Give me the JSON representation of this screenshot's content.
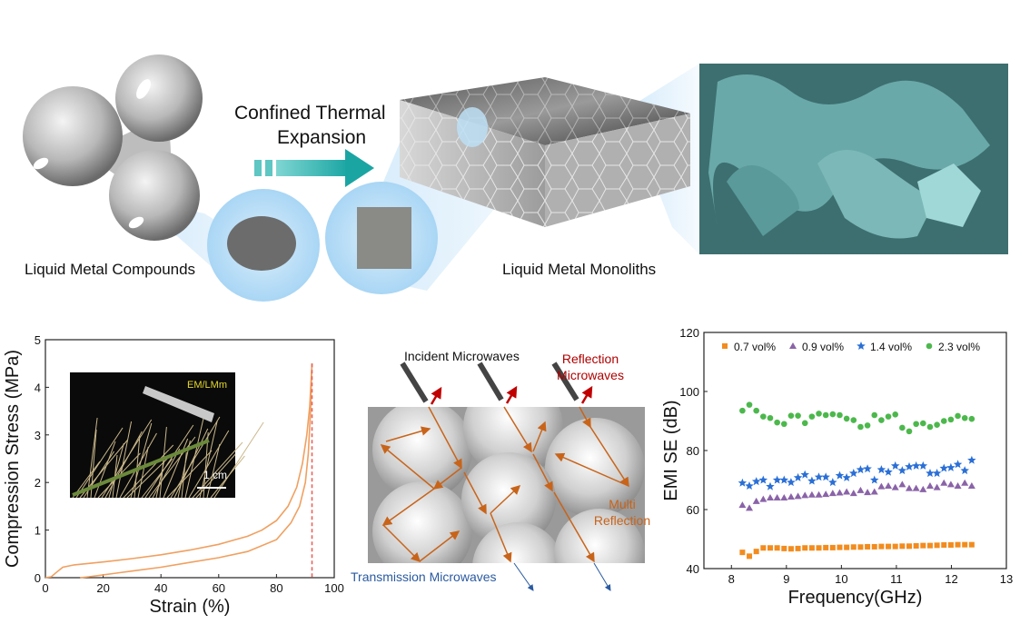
{
  "top": {
    "process_label_line1": "Confined Thermal",
    "process_label_line2": "Expansion",
    "compounds_label": "Liquid Metal Compounds",
    "monoliths_label": "Liquid Metal Monoliths"
  },
  "colors": {
    "teal_arrow": "#2bb3b0",
    "foam_render": "#5f9ea0",
    "curve": "#f0a060",
    "dashed": "#e8625a",
    "orange_ray": "#c8641a",
    "reflection": "#c00000",
    "transmission": "#2a5aa0"
  },
  "diagram": {
    "incident_label": "Incident Microwaves",
    "reflection_label_line1": "Reflection",
    "reflection_label_line2": "Microwaves",
    "multi_label_line1": "Multi",
    "multi_label_line2": "Reflection",
    "transmission_label": "Transmission Microwaves"
  },
  "chart_data": [
    {
      "type": "line",
      "xlabel": "Strain (%)",
      "ylabel": "Compression Stress (MPa)",
      "xlim": [
        0,
        100
      ],
      "ylim": [
        0,
        5
      ],
      "xticks": [
        0,
        20,
        40,
        60,
        80,
        100
      ],
      "yticks": [
        0,
        1,
        2,
        3,
        4,
        5
      ],
      "inset": {
        "label": "EM/LMm",
        "scale_bar": "1 cm"
      },
      "series": [
        {
          "x": [
            0,
            2,
            4,
            6,
            10,
            20,
            30,
            40,
            50,
            60,
            70,
            75,
            80,
            84,
            87,
            89,
            90.5,
            91.5,
            92.3
          ],
          "y": [
            0,
            0.02,
            0.12,
            0.22,
            0.27,
            0.33,
            0.4,
            0.48,
            0.58,
            0.7,
            0.87,
            1.0,
            1.2,
            1.5,
            1.9,
            2.4,
            3.0,
            3.6,
            4.5
          ]
        },
        {
          "x": [
            92.3,
            91.8,
            91,
            90,
            88,
            85,
            80,
            70,
            60,
            50,
            40,
            30,
            20,
            15,
            12
          ],
          "y": [
            4.5,
            3.5,
            2.6,
            2.0,
            1.5,
            1.15,
            0.8,
            0.55,
            0.42,
            0.32,
            0.22,
            0.14,
            0.06,
            0.02,
            0
          ]
        }
      ],
      "vline": {
        "x": 92.3,
        "style": "dashed"
      }
    },
    {
      "type": "scatter",
      "xlabel": "Frequency(GHz)",
      "ylabel": "EMI SE (dB)",
      "xlim": [
        7.5,
        13
      ],
      "ylim": [
        40,
        120
      ],
      "xticks": [
        8,
        9,
        10,
        11,
        12,
        13
      ],
      "yticks": [
        40,
        60,
        80,
        100,
        120
      ],
      "legend_position": "top",
      "x_start": 8.2,
      "x_end": 12.37,
      "series": [
        {
          "name": "0.7 vol%",
          "marker": "square",
          "color": "#f28c1e",
          "values": [
            45.5,
            44.2,
            45.8,
            47,
            47,
            47,
            46.8,
            46.7,
            46.8,
            47,
            47,
            47,
            47.1,
            47.1,
            47.2,
            47.2,
            47.3,
            47.3,
            47.4,
            47.4,
            47.5,
            47.5,
            47.5,
            47.6,
            47.6,
            47.7,
            47.8,
            47.8,
            47.9,
            48,
            48,
            48.1,
            48.1,
            48.1
          ]
        },
        {
          "name": "0.9 vol%",
          "marker": "triangle",
          "color": "#8a63a8",
          "values": [
            61.5,
            60.5,
            62.8,
            63.5,
            64,
            64,
            64,
            64.3,
            64.5,
            64.8,
            65,
            65,
            65.2,
            65.5,
            65.7,
            66,
            65.5,
            66.5,
            65.8,
            66,
            67.8,
            68,
            67.5,
            68.5,
            67.2,
            67.2,
            66.8,
            68,
            67.5,
            69,
            68.5,
            68,
            69,
            68
          ]
        },
        {
          "name": "1.4 vol%",
          "marker": "star",
          "color": "#2a6fd6",
          "values": [
            69,
            68,
            69.5,
            70,
            67.8,
            70,
            70,
            69.2,
            70.8,
            71.8,
            69.7,
            71,
            71,
            69.2,
            71.5,
            70.8,
            72.3,
            73.5,
            73.8,
            70,
            73.5,
            72.7,
            74.8,
            73.2,
            74.5,
            74.8,
            74.8,
            72.3,
            72.3,
            74,
            74.2,
            75.3,
            73.2,
            76.7
          ]
        },
        {
          "name": "2.3 vol%",
          "marker": "circle",
          "color": "#4cb84c",
          "values": [
            93.5,
            95.5,
            93.5,
            91.5,
            91,
            89.5,
            89,
            91.8,
            91.8,
            89.3,
            91.5,
            92.5,
            92,
            92.3,
            92,
            90.8,
            90.3,
            88,
            88.5,
            92,
            90.3,
            91.5,
            92.2,
            87.7,
            86.5,
            89,
            89.2,
            88,
            88.7,
            90,
            90.5,
            91.7,
            91,
            90.7
          ]
        }
      ]
    }
  ]
}
